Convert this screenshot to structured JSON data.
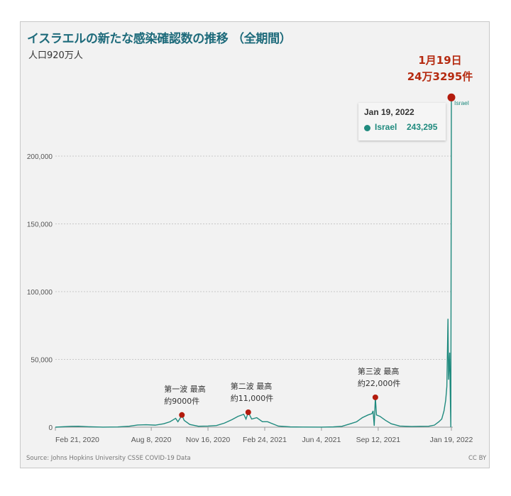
{
  "header": {
    "title": "イスラエルの新たな感染確認数の推移 （全期間）",
    "subtitle": "人口920万人"
  },
  "annotation_main": {
    "line1": "1月19日",
    "line2": "24万3295件"
  },
  "tooltip": {
    "date": "Jan 19, 2022",
    "series": "Israel",
    "value": "243,295"
  },
  "footer": {
    "source": "Source: Johns Hopkins University CSSE COVID-19 Data",
    "license": "CC BY"
  },
  "colors": {
    "line": "#1f8a7e",
    "marker": "#b31b0d",
    "title": "#1e6b7b",
    "annotation": "#b52a10"
  },
  "chart_data": {
    "type": "line",
    "title": "イスラエルの新たな感染確認数の推移 （全期間）",
    "ylim": [
      0,
      243295
    ],
    "grid": true,
    "yticks": [
      0,
      50000,
      100000,
      150000,
      200000
    ],
    "ytick_labels": [
      "0",
      "50,000",
      "100,000",
      "150,000",
      "200,000"
    ],
    "xticks": [
      "2020-02-21",
      "2020-08-08",
      "2020-11-16",
      "2021-02-24",
      "2021-06-04",
      "2021-09-12",
      "2022-01-19"
    ],
    "xtick_labels": [
      "Feb 21, 2020",
      "Aug 8, 2020",
      "Nov 16, 2020",
      "Feb 24, 2021",
      "Jun 4, 2021",
      "Sep 12, 2021",
      "Jan 19, 2022"
    ],
    "series": [
      {
        "name": "Israel",
        "points": [
          [
            "2020-02-21",
            0
          ],
          [
            "2020-03-20",
            600
          ],
          [
            "2020-04-02",
            700
          ],
          [
            "2020-04-20",
            300
          ],
          [
            "2020-05-15",
            20
          ],
          [
            "2020-06-10",
            150
          ],
          [
            "2020-06-30",
            700
          ],
          [
            "2020-07-15",
            1600
          ],
          [
            "2020-07-30",
            1800
          ],
          [
            "2020-08-15",
            1500
          ],
          [
            "2020-08-30",
            2500
          ],
          [
            "2020-09-10",
            4000
          ],
          [
            "2020-09-20",
            6500
          ],
          [
            "2020-09-24",
            4000
          ],
          [
            "2020-09-30",
            8000
          ],
          [
            "2020-10-01",
            9000
          ],
          [
            "2020-10-05",
            5000
          ],
          [
            "2020-10-15",
            2000
          ],
          [
            "2020-10-30",
            700
          ],
          [
            "2020-11-16",
            800
          ],
          [
            "2020-12-01",
            1200
          ],
          [
            "2020-12-15",
            3000
          ],
          [
            "2020-12-28",
            5500
          ],
          [
            "2021-01-08",
            8000
          ],
          [
            "2021-01-18",
            9500
          ],
          [
            "2021-01-22",
            6000
          ],
          [
            "2021-01-26",
            11000
          ],
          [
            "2021-02-01",
            6000
          ],
          [
            "2021-02-10",
            7000
          ],
          [
            "2021-02-20",
            4000
          ],
          [
            "2021-03-01",
            4000
          ],
          [
            "2021-03-10",
            2500
          ],
          [
            "2021-03-20",
            800
          ],
          [
            "2021-04-10",
            200
          ],
          [
            "2021-05-01",
            80
          ],
          [
            "2021-06-04",
            10
          ],
          [
            "2021-06-25",
            200
          ],
          [
            "2021-07-10",
            600
          ],
          [
            "2021-07-25",
            2500
          ],
          [
            "2021-08-05",
            4000
          ],
          [
            "2021-08-15",
            7000
          ],
          [
            "2021-08-25",
            9000
          ],
          [
            "2021-09-01",
            10000
          ],
          [
            "2021-09-03",
            12000
          ],
          [
            "2021-09-05",
            1000
          ],
          [
            "2021-09-07",
            22000
          ],
          [
            "2021-09-09",
            9000
          ],
          [
            "2021-09-15",
            8000
          ],
          [
            "2021-09-25",
            5000
          ],
          [
            "2021-10-05",
            2500
          ],
          [
            "2021-10-20",
            800
          ],
          [
            "2021-11-10",
            500
          ],
          [
            "2021-11-25",
            600
          ],
          [
            "2021-12-10",
            700
          ],
          [
            "2021-12-20",
            1500
          ],
          [
            "2021-12-28",
            4000
          ],
          [
            "2022-01-02",
            6000
          ],
          [
            "2022-01-06",
            12000
          ],
          [
            "2022-01-09",
            20000
          ],
          [
            "2022-01-11",
            30000
          ],
          [
            "2022-01-13",
            80000
          ],
          [
            "2022-01-14",
            35000
          ],
          [
            "2022-01-16",
            55000
          ],
          [
            "2022-01-17",
            25000
          ],
          [
            "2022-01-18",
            0
          ],
          [
            "2022-01-19",
            243295
          ]
        ]
      }
    ],
    "series_label": "Israel",
    "annotations": [
      {
        "date": "2020-10-01",
        "value": 9000,
        "line1": "第一波 最高",
        "line2": "約9000件"
      },
      {
        "date": "2021-01-26",
        "value": 11000,
        "line1": "第二波 最高",
        "line2": "約11,000件"
      },
      {
        "date": "2021-09-07",
        "value": 22000,
        "line1": "第三波 最高",
        "line2": "約22,000件"
      },
      {
        "date": "2022-01-19",
        "value": 243295
      }
    ]
  }
}
